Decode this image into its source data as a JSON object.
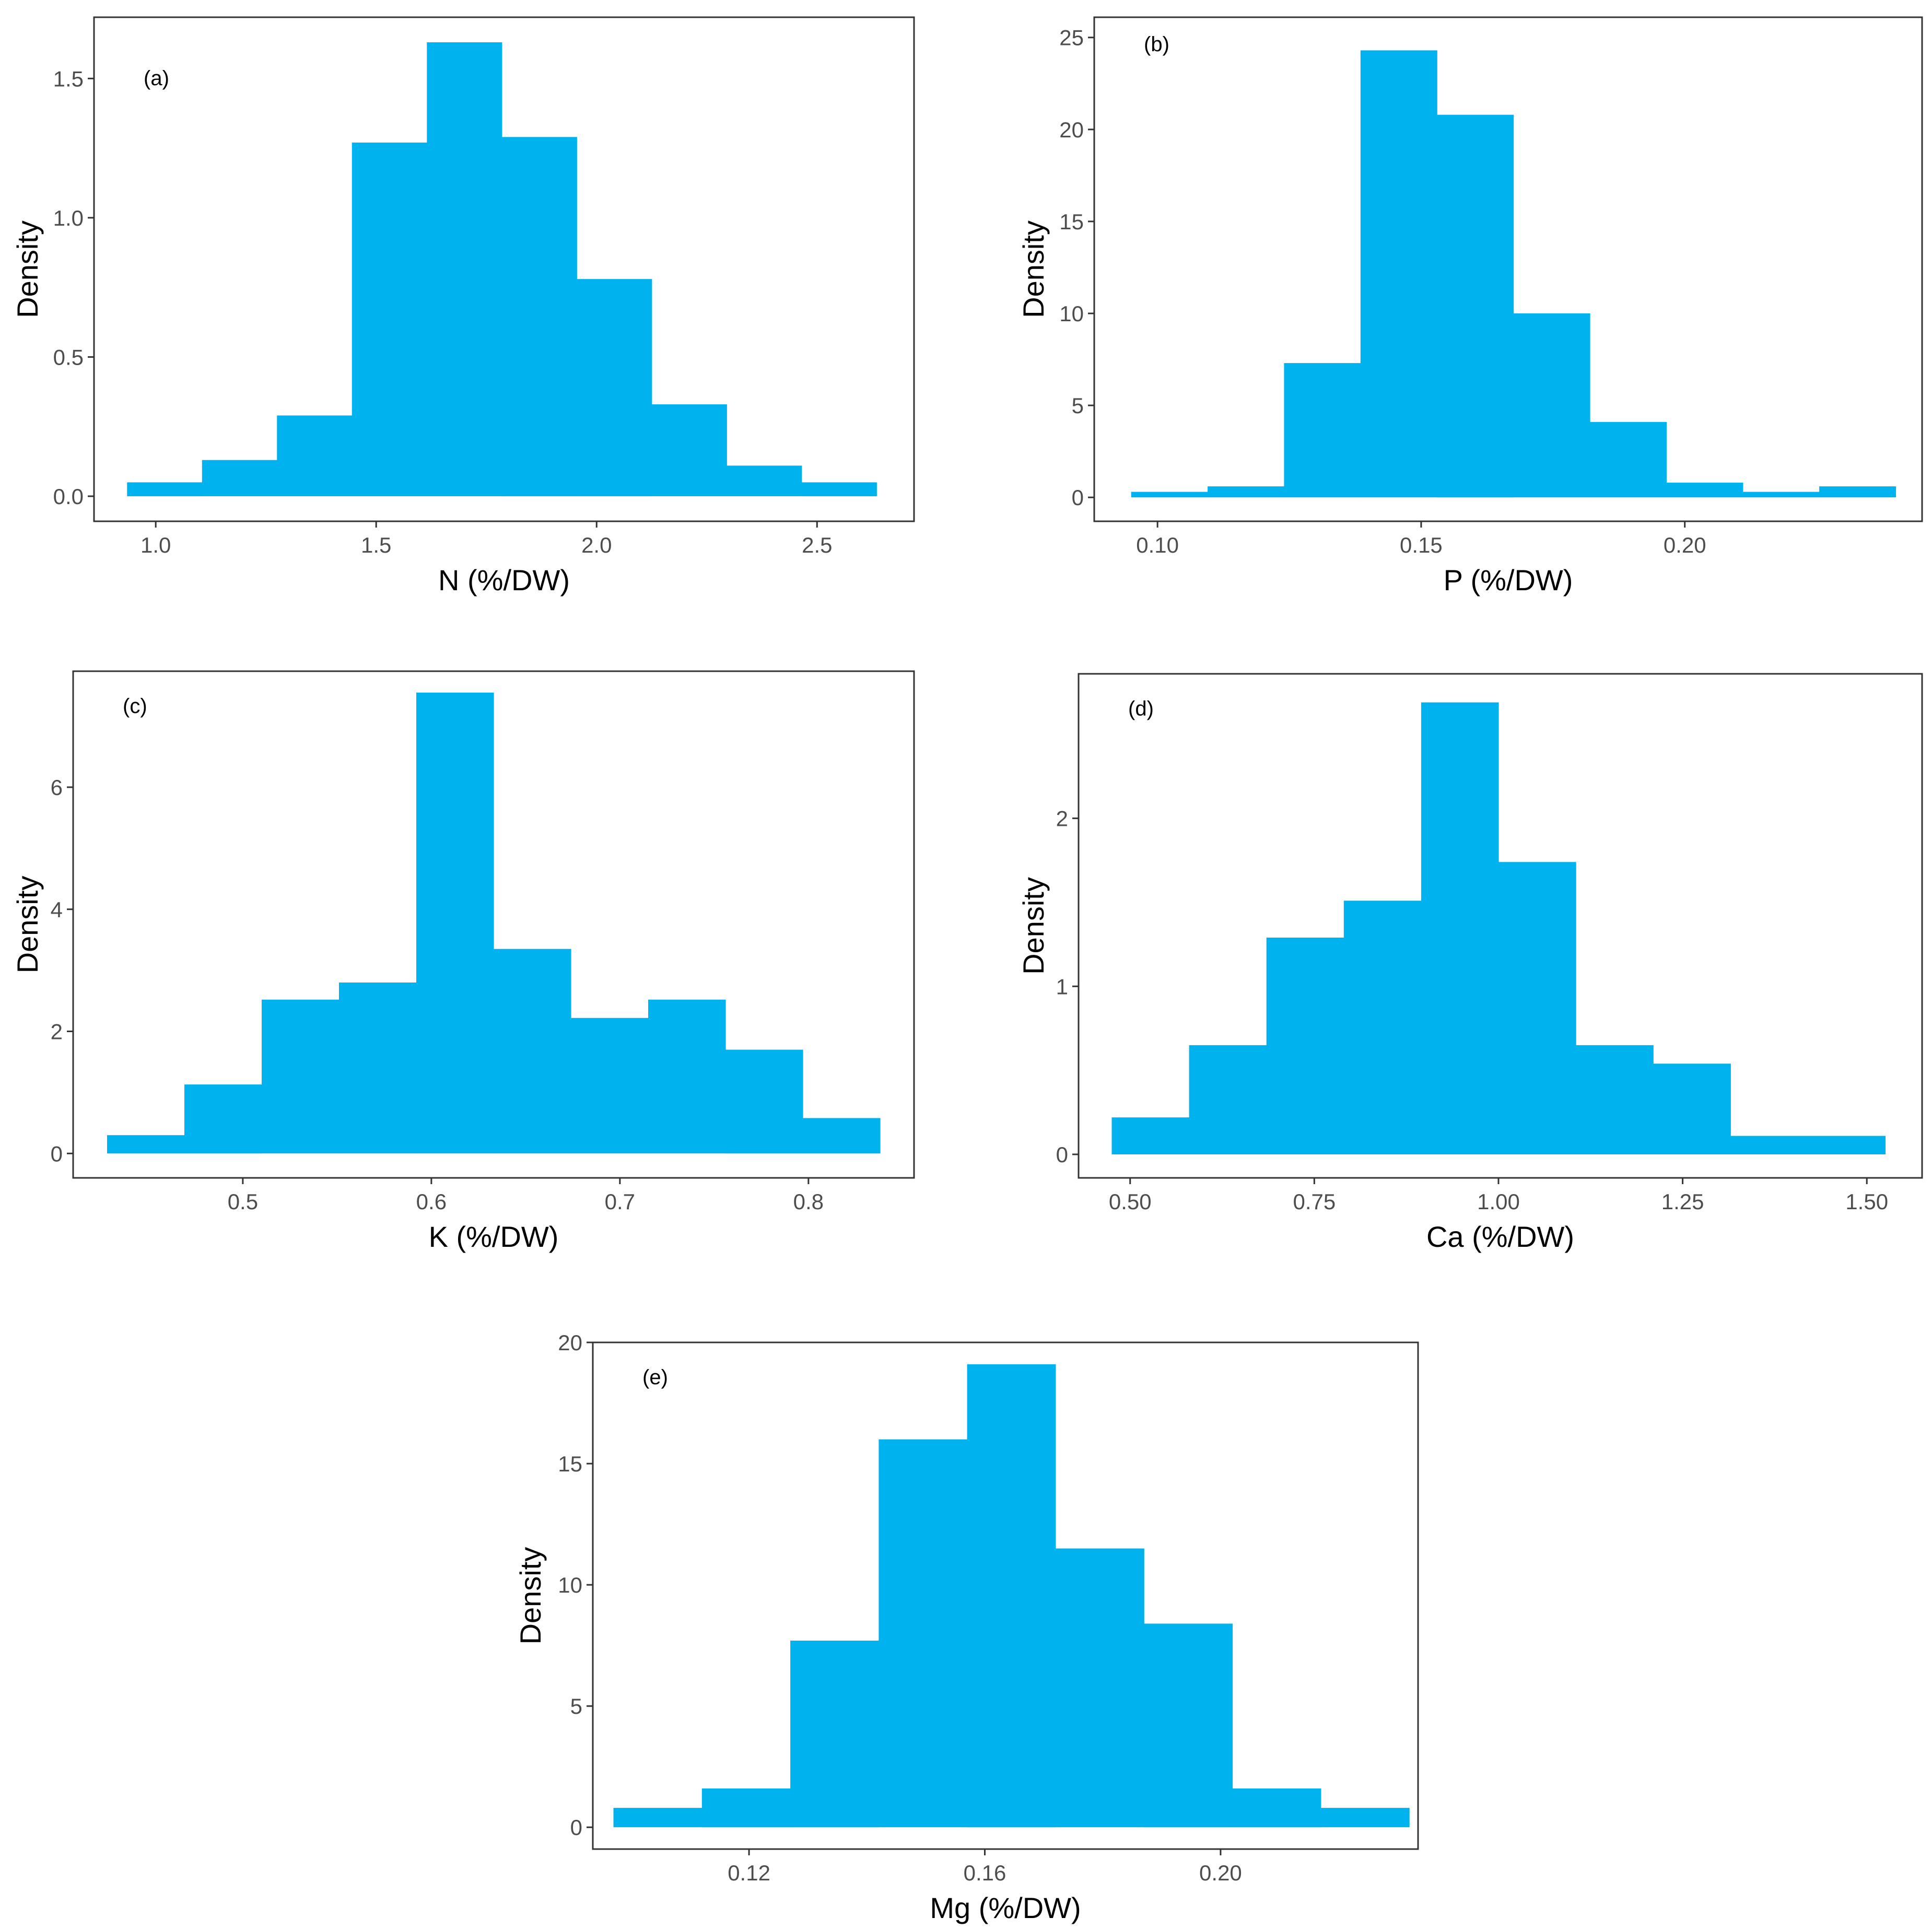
{
  "colors": {
    "bar": "#00B2EE",
    "frame": "#333333",
    "tick_text": "#4D4D4D",
    "title_text": "#000000"
  },
  "chart_data": [
    {
      "type": "bar",
      "panel_label": "(a)",
      "xlabel": "N (%/DW)",
      "ylabel": "Density",
      "xlim": [
        0.86,
        2.72
      ],
      "ylim": [
        -0.09,
        1.72
      ],
      "xticks": [
        1.0,
        1.5,
        2.0,
        2.5
      ],
      "xtick_labels": [
        "1.0",
        "1.5",
        "2.0",
        "2.5"
      ],
      "yticks": [
        0.0,
        0.5,
        1.0,
        1.5
      ],
      "ytick_labels": [
        "0.0",
        "0.5",
        "1.0",
        "1.5"
      ],
      "bin_edges": [
        0.935,
        1.105,
        1.275,
        1.445,
        1.615,
        1.785,
        1.955,
        2.125,
        2.295,
        2.465,
        2.635
      ],
      "values": [
        0.05,
        0.13,
        0.29,
        1.27,
        1.63,
        1.29,
        0.78,
        0.33,
        0.11,
        0.05
      ]
    },
    {
      "type": "bar",
      "panel_label": "(b)",
      "xlabel": "P (%/DW)",
      "ylabel": "Density",
      "xlim": [
        0.088,
        0.245
      ],
      "ylim": [
        -1.3,
        26.1
      ],
      "xticks": [
        0.1,
        0.15,
        0.2
      ],
      "xtick_labels": [
        "0.10",
        "0.15",
        "0.20"
      ],
      "yticks": [
        0,
        5,
        10,
        15,
        20,
        25
      ],
      "ytick_labels": [
        "0",
        "5",
        "10",
        "15",
        "20",
        "25"
      ],
      "bin_edges": [
        0.095,
        0.1095,
        0.124,
        0.1385,
        0.153,
        0.1675,
        0.182,
        0.1965,
        0.211,
        0.2255,
        0.24
      ],
      "values": [
        0.3,
        0.6,
        7.3,
        24.3,
        20.8,
        10.0,
        4.1,
        0.8,
        0.3,
        0.6
      ]
    },
    {
      "type": "bar",
      "panel_label": "(c)",
      "xlabel": "K (%/DW)",
      "ylabel": "Density",
      "xlim": [
        0.41,
        0.856
      ],
      "ylim": [
        -0.4,
        7.9
      ],
      "xticks": [
        0.5,
        0.6,
        0.7,
        0.8
      ],
      "xtick_labels": [
        "0.5",
        "0.6",
        "0.7",
        "0.8"
      ],
      "yticks": [
        0,
        2,
        4,
        6
      ],
      "ytick_labels": [
        "0",
        "2",
        "4",
        "6"
      ],
      "bin_edges": [
        0.428,
        0.469,
        0.51,
        0.551,
        0.592,
        0.633,
        0.674,
        0.715,
        0.756,
        0.797,
        0.838
      ],
      "values": [
        0.3,
        1.13,
        2.52,
        2.8,
        7.55,
        3.35,
        2.22,
        2.52,
        1.7,
        0.58
      ]
    },
    {
      "type": "bar",
      "panel_label": "(d)",
      "xlabel": "Ca (%/DW)",
      "ylabel": "Density",
      "xlim": [
        0.43,
        1.575
      ],
      "ylim": [
        -0.14,
        2.86
      ],
      "xticks": [
        0.5,
        0.75,
        1.0,
        1.25,
        1.5
      ],
      "xtick_labels": [
        "0.50",
        "0.75",
        "1.00",
        "1.25",
        "1.50"
      ],
      "yticks": [
        0,
        1,
        2
      ],
      "ytick_labels": [
        "0",
        "1",
        "2"
      ],
      "bin_edges": [
        0.475,
        0.58,
        0.685,
        0.79,
        0.895,
        1.0,
        1.105,
        1.21,
        1.315,
        1.42,
        1.525
      ],
      "values": [
        0.22,
        0.65,
        1.29,
        1.51,
        2.69,
        1.74,
        0.65,
        0.54,
        0.11,
        0.11
      ]
    },
    {
      "type": "bar",
      "panel_label": "(e)",
      "xlabel": "Mg (%/DW)",
      "ylabel": "Density",
      "xlim": [
        0.0935,
        0.2335
      ],
      "ylim": [
        -0.9,
        20.0
      ],
      "xticks": [
        0.12,
        0.16,
        0.2
      ],
      "xtick_labels": [
        "0.12",
        "0.16",
        "0.20"
      ],
      "yticks": [
        0,
        5,
        10,
        15,
        20
      ],
      "ytick_labels": [
        "0",
        "5",
        "10",
        "15",
        "20"
      ],
      "bin_edges": [
        0.097,
        0.112,
        0.127,
        0.142,
        0.157,
        0.172,
        0.187,
        0.202,
        0.217,
        0.232
      ],
      "values": [
        0.8,
        1.6,
        7.7,
        16.0,
        19.1,
        11.5,
        8.4,
        1.6,
        0.8
      ]
    }
  ]
}
